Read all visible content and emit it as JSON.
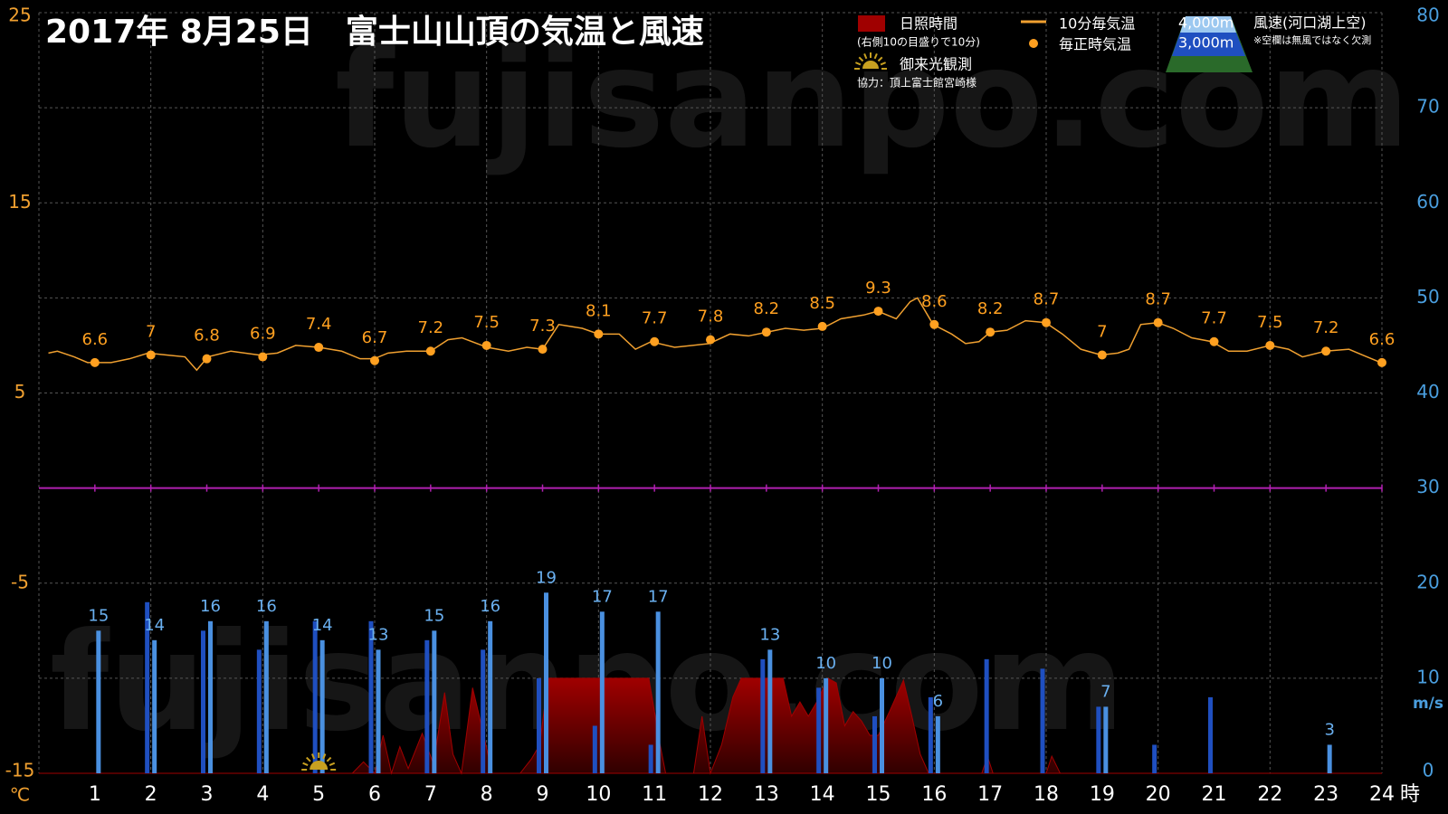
{
  "chart_data": {
    "type": "combo",
    "title": "2017年  8月25日　富士山山頂の気温と風速",
    "xlim": [
      0,
      24
    ],
    "xticks": [
      1,
      2,
      3,
      4,
      5,
      6,
      7,
      8,
      9,
      10,
      11,
      12,
      13,
      14,
      15,
      16,
      17,
      18,
      19,
      20,
      21,
      22,
      23,
      24
    ],
    "x_label": "時",
    "ylim": [
      -15,
      25
    ],
    "yticks": [
      -15,
      -5,
      5,
      15,
      25
    ],
    "y_label": "℃",
    "y2lim": [
      0,
      80
    ],
    "y2ticks": [
      0,
      10,
      20,
      30,
      40,
      50,
      60,
      70,
      80
    ],
    "y2_label": "m/s",
    "grid": true,
    "series": [
      {
        "name": "日照時間",
        "type": "area",
        "axis": "y2",
        "color": "#a00000",
        "x": [
          0,
          5.6,
          5.8,
          6.0,
          6.15,
          6.3,
          6.45,
          6.6,
          6.85,
          7.05,
          7.25,
          7.4,
          7.55,
          7.75,
          7.95,
          8.1,
          8.6,
          8.8,
          8.95,
          9.1,
          10.9,
          11.1,
          11.2,
          11.7,
          11.85,
          12.0,
          12.2,
          12.4,
          12.55,
          13.3,
          13.45,
          13.6,
          13.75,
          13.9,
          14.1,
          14.25,
          14.4,
          14.55,
          14.7,
          14.85,
          15.0,
          15.2,
          15.45,
          15.6,
          15.75,
          15.9,
          16.85,
          16.95,
          17.05,
          18.0,
          18.1,
          18.25,
          24
        ],
        "values": [
          0,
          0,
          1.2,
          0,
          4,
          0,
          2.8,
          0.5,
          4.2,
          1,
          8.5,
          2,
          0,
          9,
          4,
          0,
          0,
          1.5,
          3,
          10,
          10,
          3,
          0,
          0,
          6,
          0,
          3,
          8,
          10,
          10,
          6,
          7.5,
          6,
          7.5,
          10,
          9.5,
          5,
          6.5,
          5.5,
          4,
          4,
          6.5,
          9.8,
          6,
          2,
          0,
          0,
          1.8,
          0,
          0,
          1.8,
          0,
          0
        ]
      },
      {
        "name": "10分毎気温",
        "type": "line",
        "color": "#f0a030",
        "x": [
          0.17,
          0.33,
          0.63,
          0.87,
          1.29,
          1.62,
          1.95,
          2.28,
          2.61,
          2.82,
          3.02,
          3.43,
          3.93,
          4.26,
          4.59,
          5.0,
          5.41,
          5.74,
          5.99,
          6.24,
          6.57,
          7.0,
          7.31,
          7.56,
          8.01,
          8.39,
          8.72,
          9.0,
          9.29,
          9.71,
          10.0,
          10.37,
          10.66,
          10.94,
          11.36,
          11.98,
          12.35,
          12.68,
          13.01,
          13.34,
          13.67,
          14.0,
          14.33,
          14.74,
          14.99,
          15.32,
          15.57,
          15.7,
          15.98,
          16.31,
          16.56,
          16.8,
          17.0,
          17.3,
          17.63,
          17.99,
          18.29,
          18.62,
          18.98,
          19.28,
          19.48,
          19.69,
          19.99,
          20.27,
          20.6,
          20.96,
          21.26,
          21.59,
          22.0,
          22.33,
          22.58,
          22.99,
          23.41,
          23.65,
          23.98
        ],
        "values": [
          7.1,
          7.2,
          6.9,
          6.6,
          6.6,
          6.8,
          7.1,
          7.0,
          6.9,
          6.2,
          6.9,
          7.2,
          7.0,
          7.1,
          7.5,
          7.4,
          7.2,
          6.8,
          6.8,
          7.1,
          7.2,
          7.2,
          7.8,
          7.9,
          7.4,
          7.2,
          7.4,
          7.3,
          8.6,
          8.4,
          8.1,
          8.1,
          7.3,
          7.7,
          7.4,
          7.6,
          8.1,
          8.0,
          8.2,
          8.4,
          8.3,
          8.4,
          8.9,
          9.1,
          9.3,
          8.9,
          9.8,
          10.0,
          8.6,
          8.1,
          7.6,
          7.7,
          8.2,
          8.3,
          8.8,
          8.7,
          8.1,
          7.3,
          7.0,
          7.1,
          7.3,
          8.6,
          8.7,
          8.4,
          7.9,
          7.7,
          7.2,
          7.2,
          7.5,
          7.3,
          6.9,
          7.2,
          7.3,
          7.0,
          6.6
        ]
      },
      {
        "name": "毎正時気温",
        "type": "scatter",
        "color": "#ffa020",
        "x": [
          1,
          2,
          3,
          4,
          5,
          6,
          7,
          8,
          9,
          10,
          11,
          12,
          13,
          14,
          15,
          16,
          17,
          18,
          19,
          20,
          21,
          22,
          23,
          24
        ],
        "values": [
          6.6,
          7,
          6.8,
          6.9,
          7.4,
          6.7,
          7.2,
          7.5,
          7.3,
          8.1,
          7.7,
          7.8,
          8.2,
          8.5,
          9.3,
          8.6,
          8.2,
          8.7,
          7,
          8.7,
          7.7,
          7.5,
          7.2,
          6.6
        ]
      },
      {
        "name": "3,000m",
        "type": "bar",
        "axis": "y2",
        "color": "#1f4fc0",
        "x": [
          1,
          2,
          3,
          4,
          5,
          6,
          7,
          8,
          9,
          10,
          11,
          12,
          13,
          14,
          15,
          16,
          17,
          18,
          19,
          20,
          21,
          22,
          23,
          24
        ],
        "values": [
          null,
          18,
          15,
          13,
          16,
          16,
          14,
          13,
          10,
          5,
          3,
          null,
          12,
          9,
          6,
          8,
          12,
          11,
          7,
          3,
          8,
          null,
          null,
          null
        ]
      },
      {
        "name": "4,000m",
        "type": "bar",
        "axis": "y2",
        "color": "#4a90e0",
        "x": [
          1,
          2,
          3,
          4,
          5,
          6,
          7,
          8,
          9,
          10,
          11,
          12,
          13,
          14,
          15,
          16,
          17,
          18,
          19,
          20,
          21,
          22,
          23,
          24
        ],
        "values": [
          15,
          14,
          16,
          16,
          14,
          13,
          15,
          16,
          19,
          17,
          17,
          null,
          13,
          10,
          10,
          6,
          null,
          null,
          7,
          null,
          null,
          null,
          3,
          null
        ]
      }
    ],
    "annotations": {
      "sunshine_note": "(右側10の目盛りで10分)",
      "sunrise": "御来光観測",
      "sunrise_hour": 5,
      "credit": "協力：頂上富士館宮崎様",
      "wind_title": "風速(河口湖上空)",
      "missing_note": "※空欄は無風ではなく欠測",
      "watermark": "fujisanpo.com"
    }
  }
}
